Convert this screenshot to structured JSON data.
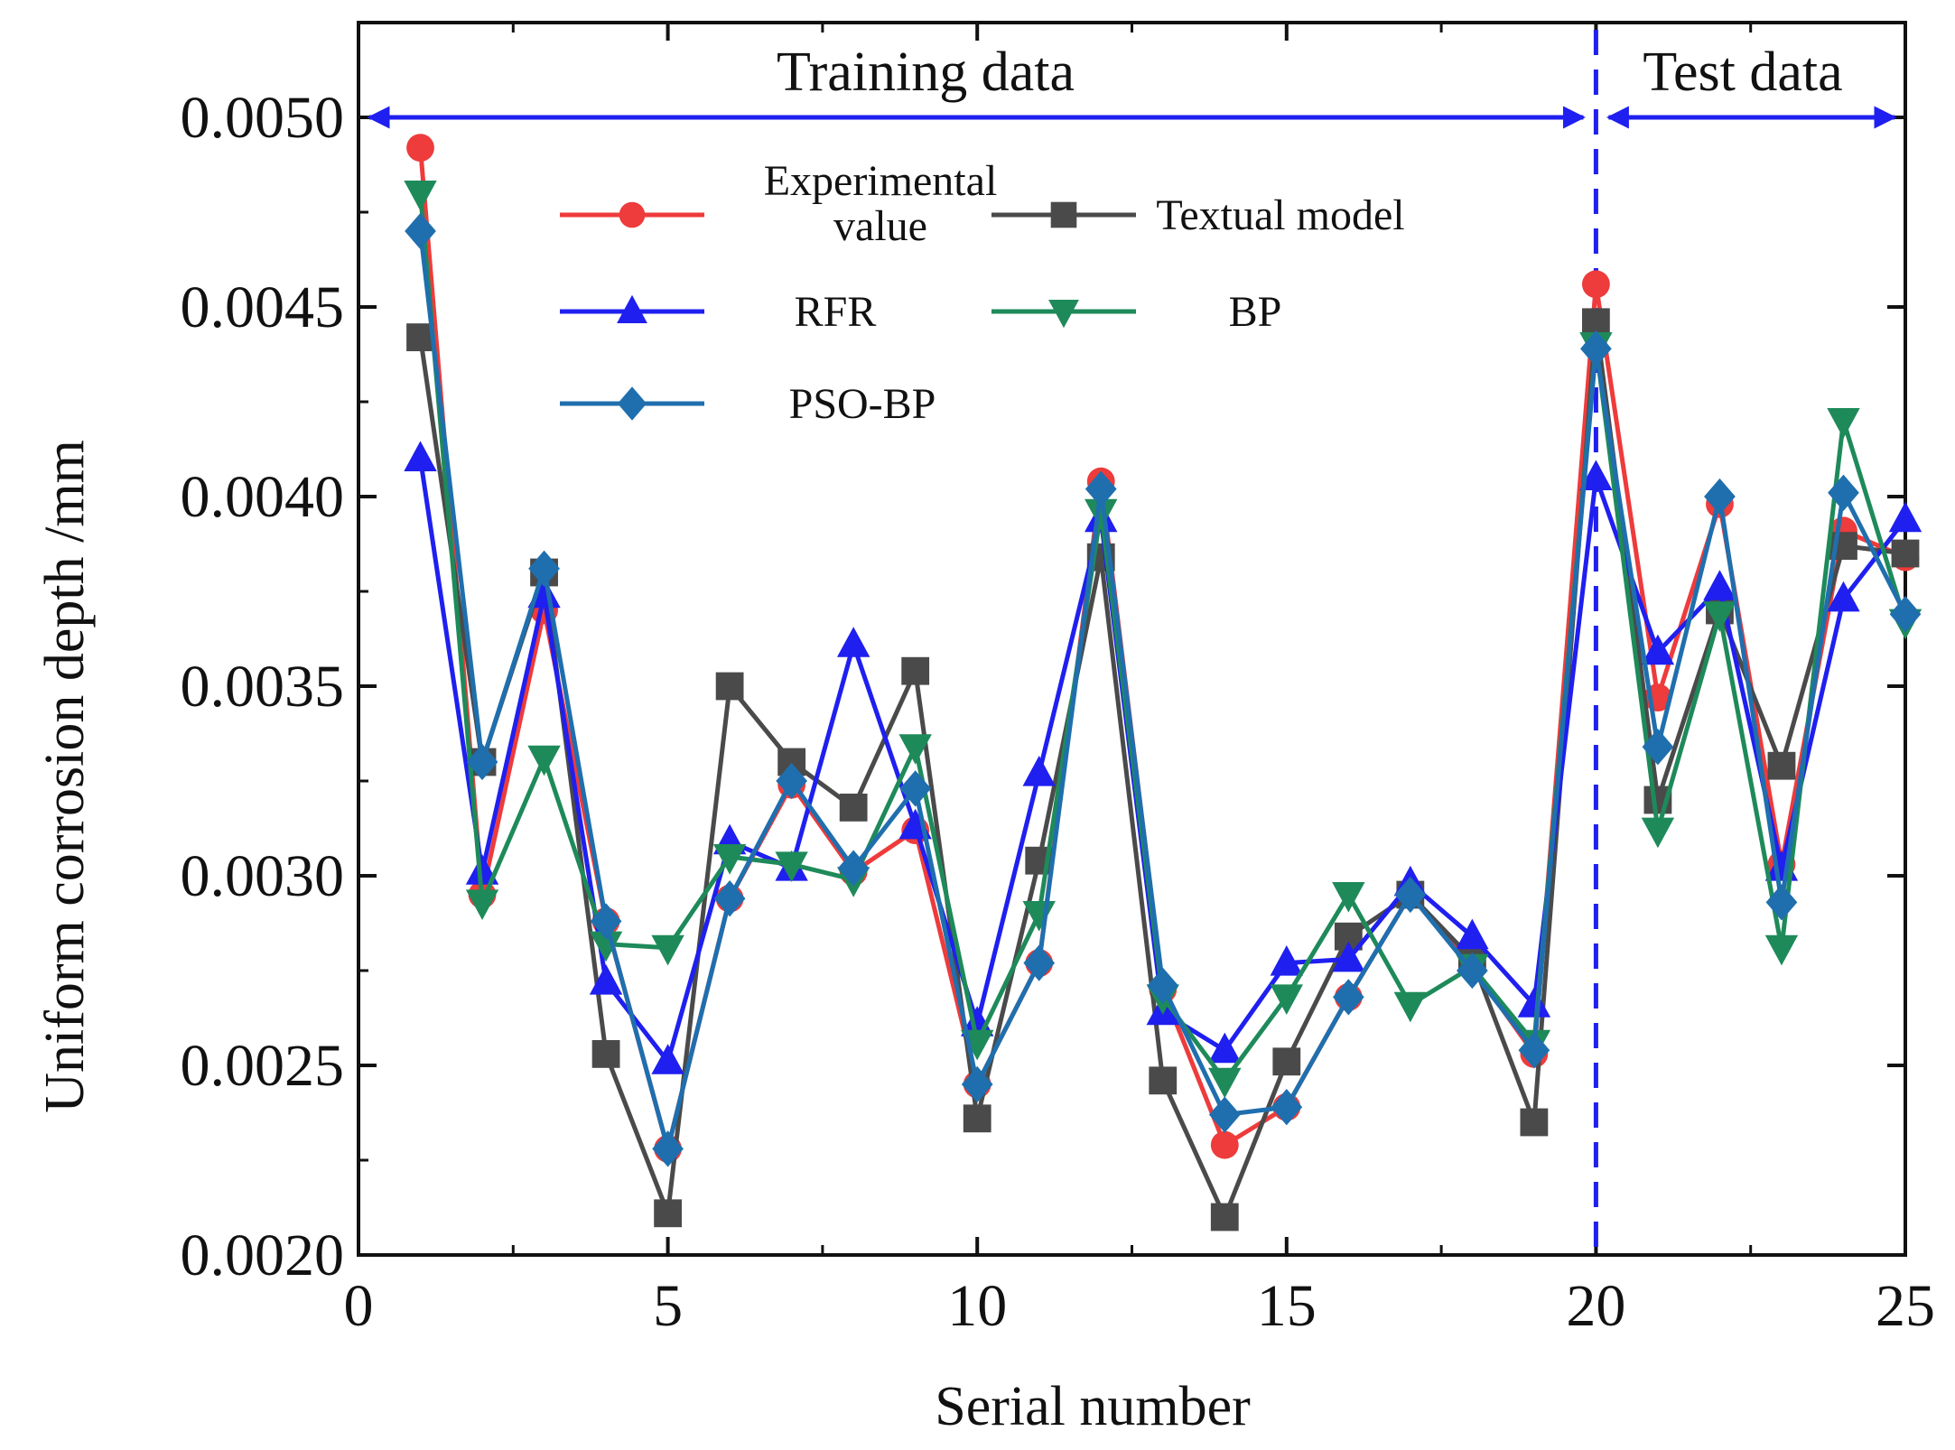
{
  "chart_data": {
    "type": "line",
    "xlabel": "Serial number",
    "ylabel": "Uniform corrosion depth  /mm",
    "xlim": [
      0,
      25
    ],
    "ylim": [
      0.002,
      0.00525
    ],
    "xticks": [
      0,
      5,
      10,
      15,
      20,
      25
    ],
    "xtick_labels": [
      "0",
      "5",
      "10",
      "15",
      "20",
      "25"
    ],
    "yticks": [
      0.002,
      0.0025,
      0.003,
      0.0035,
      0.004,
      0.0045,
      0.005
    ],
    "ytick_labels": [
      "0.0020",
      "0.0025",
      "0.0030",
      "0.0035",
      "0.0040",
      "0.0045",
      "0.0050"
    ],
    "split_x": 20,
    "annotations": {
      "training": "Training data",
      "test": "Test data"
    },
    "x": [
      1,
      2,
      3,
      4,
      5,
      6,
      7,
      8,
      9,
      10,
      11,
      12,
      13,
      14,
      15,
      16,
      17,
      18,
      19,
      20,
      21,
      22,
      23,
      24,
      25
    ],
    "series": [
      {
        "name": "Experimental value",
        "legend_lines": [
          "Experimental",
          "value"
        ],
        "color": "#ee3b3b",
        "marker": "circle",
        "values": [
          0.00492,
          0.00295,
          0.0037,
          0.00288,
          0.00228,
          0.00294,
          0.00324,
          0.00301,
          0.00312,
          0.00245,
          0.00277,
          0.00404,
          0.0027,
          0.00229,
          0.00239,
          0.00268,
          0.00295,
          0.00276,
          0.00253,
          0.00456,
          0.00347,
          0.00398,
          0.00303,
          0.00391,
          0.00384
        ]
      },
      {
        "name": "Textual model",
        "legend_lines": [
          "Textual model"
        ],
        "color": "#4a4a4a",
        "marker": "square",
        "values": [
          0.00442,
          0.0033,
          0.0038,
          0.00253,
          0.00211,
          0.0035,
          0.0033,
          0.00318,
          0.00354,
          0.00236,
          0.00304,
          0.00384,
          0.00246,
          0.0021,
          0.00251,
          0.00284,
          0.00295,
          0.00278,
          0.00235,
          0.00446,
          0.0032,
          0.0037,
          0.00329,
          0.00387,
          0.00385
        ]
      },
      {
        "name": "RFR",
        "legend_lines": [
          "RFR"
        ],
        "color": "#1f1ff0",
        "marker": "triangle-up",
        "values": [
          0.0041,
          0.00301,
          0.00374,
          0.00272,
          0.00251,
          0.00309,
          0.00302,
          0.00361,
          0.00313,
          0.00261,
          0.00327,
          0.00394,
          0.00264,
          0.00254,
          0.00277,
          0.00278,
          0.00298,
          0.00284,
          0.00266,
          0.00405,
          0.00359,
          0.00376,
          0.00302,
          0.00373,
          0.00394
        ]
      },
      {
        "name": "BP",
        "legend_lines": [
          "BP"
        ],
        "color": "#1e8a5a",
        "marker": "triangle-down",
        "values": [
          0.0048,
          0.00293,
          0.00331,
          0.00282,
          0.00281,
          0.00305,
          0.00303,
          0.00299,
          0.00334,
          0.00256,
          0.0029,
          0.00396,
          0.00268,
          0.00246,
          0.00268,
          0.00295,
          0.00266,
          0.00276,
          0.00256,
          0.0044,
          0.00312,
          0.00369,
          0.00281,
          0.0042,
          0.00367
        ]
      },
      {
        "name": "PSO-BP",
        "legend_lines": [
          "PSO-BP"
        ],
        "color": "#1f6fae",
        "marker": "diamond",
        "values": [
          0.0047,
          0.0033,
          0.00381,
          0.00288,
          0.00228,
          0.00294,
          0.00325,
          0.00302,
          0.00323,
          0.00245,
          0.00277,
          0.00402,
          0.00271,
          0.00237,
          0.00239,
          0.00268,
          0.00295,
          0.00275,
          0.00254,
          0.00439,
          0.00334,
          0.004,
          0.00293,
          0.00401,
          0.00369
        ]
      }
    ]
  }
}
